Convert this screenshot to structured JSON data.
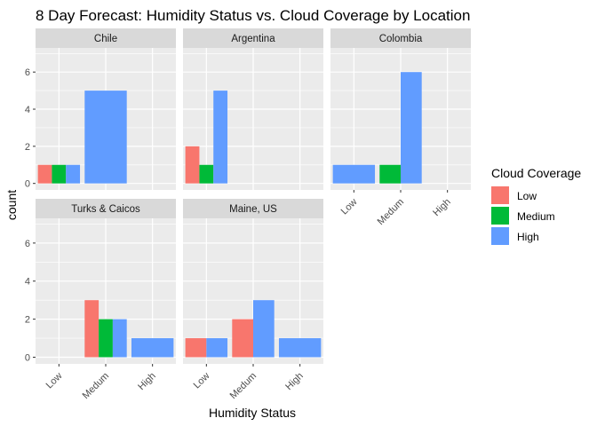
{
  "chart_data": {
    "type": "bar",
    "title": "8 Day Forecast: Humidity Status vs. Cloud Coverage by Location",
    "xlabel": "Humidity Status",
    "ylabel": "count",
    "categories": [
      "Low",
      "Medum",
      "High"
    ],
    "ylim": [
      -0.35,
      7.3
    ],
    "yticks": [
      0,
      2,
      4,
      6
    ],
    "legend": {
      "title": "Cloud Coverage",
      "position": "right",
      "entries": [
        {
          "name": "Low",
          "color": "#F8766D"
        },
        {
          "name": "Medium",
          "color": "#00BA38"
        },
        {
          "name": "High",
          "color": "#619CFF"
        }
      ]
    },
    "facets": [
      {
        "name": "Chile",
        "bars": [
          {
            "x": "Low",
            "fill": [
              "Low",
              "Medium",
              "High"
            ],
            "values": [
              1,
              1,
              1
            ]
          },
          {
            "x": "Medum",
            "fill": [
              "High"
            ],
            "values": [
              5
            ]
          }
        ]
      },
      {
        "name": "Argentina",
        "bars": [
          {
            "x": "Low",
            "fill": [
              "Low",
              "Medium",
              "High"
            ],
            "values": [
              2,
              1,
              5
            ]
          }
        ]
      },
      {
        "name": "Colombia",
        "bars": [
          {
            "x": "Low",
            "fill": [
              "High"
            ],
            "values": [
              1
            ]
          },
          {
            "x": "Medum",
            "fill": [
              "Medium",
              "High"
            ],
            "values": [
              1,
              6
            ]
          }
        ]
      },
      {
        "name": "Turks & Caicos",
        "bars": [
          {
            "x": "Medum",
            "fill": [
              "Low",
              "Medium",
              "High"
            ],
            "values": [
              3,
              2,
              2
            ]
          },
          {
            "x": "High",
            "fill": [
              "High"
            ],
            "values": [
              1
            ]
          }
        ]
      },
      {
        "name": "Maine, US",
        "bars": [
          {
            "x": "Low",
            "fill": [
              "Low",
              "High"
            ],
            "values": [
              1,
              1
            ]
          },
          {
            "x": "Medum",
            "fill": [
              "Low",
              "High"
            ],
            "values": [
              2,
              3
            ]
          },
          {
            "x": "High",
            "fill": [
              "High"
            ],
            "values": [
              1
            ]
          }
        ]
      }
    ]
  }
}
